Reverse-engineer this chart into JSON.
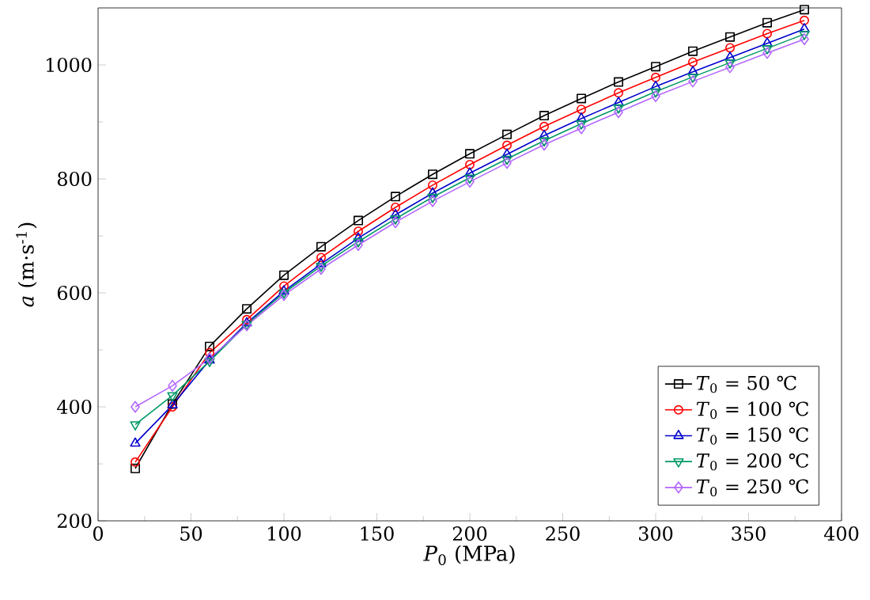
{
  "chart_data": {
    "type": "line",
    "xlabel": "*P*$_{0}$ (MPa)",
    "ylabel": "*a* (m·s$^{-1}$)",
    "x": [
      20,
      40,
      60,
      80,
      100,
      120,
      140,
      160,
      180,
      200,
      220,
      240,
      260,
      280,
      300,
      320,
      340,
      360,
      380
    ],
    "series": [
      {
        "name": "*T*$_{0}$ = 50 ℃",
        "color": "#000000",
        "marker": "square",
        "values": [
          292,
          405,
          506,
          572,
          631,
          681,
          727,
          769,
          808,
          844,
          878,
          911,
          941,
          970,
          997,
          1024,
          1049,
          1074,
          1097
        ]
      },
      {
        "name": "*T*$_{0}$ = 100 ℃",
        "color": "#ff0000",
        "marker": "circle",
        "values": [
          303,
          400,
          495,
          553,
          612,
          662,
          708,
          750,
          789,
          825,
          859,
          892,
          922,
          951,
          978,
          1005,
          1030,
          1055,
          1078
        ]
      },
      {
        "name": "*T*$_{0}$ = 150 ℃",
        "color": "#0000cc",
        "marker": "triangle",
        "values": [
          336,
          403,
          482,
          547,
          603,
          651,
          696,
          737,
          775,
          810,
          843,
          876,
          906,
          934,
          962,
          988,
          1013,
          1038,
          1063
        ]
      },
      {
        "name": "*T*$_{0}$ = 200 ℃",
        "color": "#009966",
        "marker": "triangle down",
        "values": [
          369,
          420,
          480,
          545,
          600,
          647,
          690,
          730,
          768,
          802,
          835,
          867,
          897,
          925,
          953,
          979,
          1004,
          1029,
          1054
        ]
      },
      {
        "name": "*T*$_{0}$ = 250 ℃",
        "color": "#b266ff",
        "marker": "diamond",
        "values": [
          400,
          437,
          485,
          543,
          596,
          642,
          684,
          724,
          761,
          795,
          828,
          860,
          889,
          917,
          945,
          971,
          996,
          1021,
          1045
        ]
      }
    ],
    "xlim": [
      0,
      400
    ],
    "xticks": [
      0,
      50,
      100,
      150,
      200,
      250,
      300,
      350,
      400
    ],
    "ylim": [
      200,
      1100
    ],
    "yticks": [
      200,
      400,
      600,
      800,
      1000
    ],
    "grid": false,
    "legend": "bottom right",
    "line_style": "solid"
  }
}
